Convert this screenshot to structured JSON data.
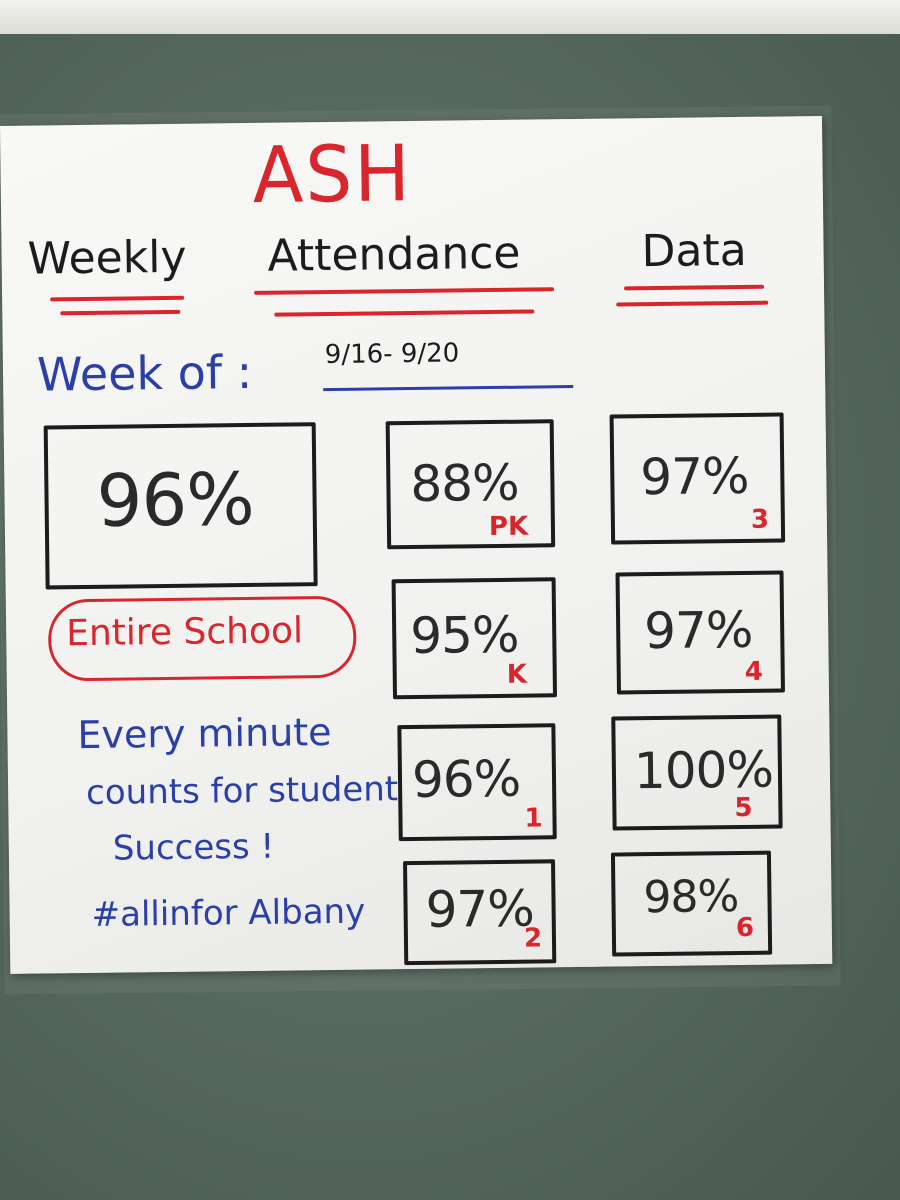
{
  "poster": {
    "title": "ASH",
    "subtitle": {
      "weekly": "Weekly",
      "attendance": "Attendance",
      "data": "Data"
    },
    "week_label": "Week of :",
    "week_range": "9/16- 9/20",
    "school": {
      "value": "96%",
      "label": "Entire School"
    },
    "grades": [
      {
        "value": "88%",
        "grade": "PK"
      },
      {
        "value": "97%",
        "grade": "3"
      },
      {
        "value": "95%",
        "grade": "K"
      },
      {
        "value": "97%",
        "grade": "4"
      },
      {
        "value": "96%",
        "grade": "1"
      },
      {
        "value": "100%",
        "grade": "5"
      },
      {
        "value": "97%",
        "grade": "2"
      },
      {
        "value": "98%",
        "grade": "6"
      }
    ],
    "motto": {
      "line1": "Every minute",
      "line2": "counts for student",
      "line3": "Success !",
      "hashtag": "#allinfor Albany"
    },
    "colors": {
      "red_marker": "#d8262c",
      "blue_marker": "#2a3fa8",
      "black_marker": "#1c1c1c",
      "board": "#56675e"
    }
  }
}
